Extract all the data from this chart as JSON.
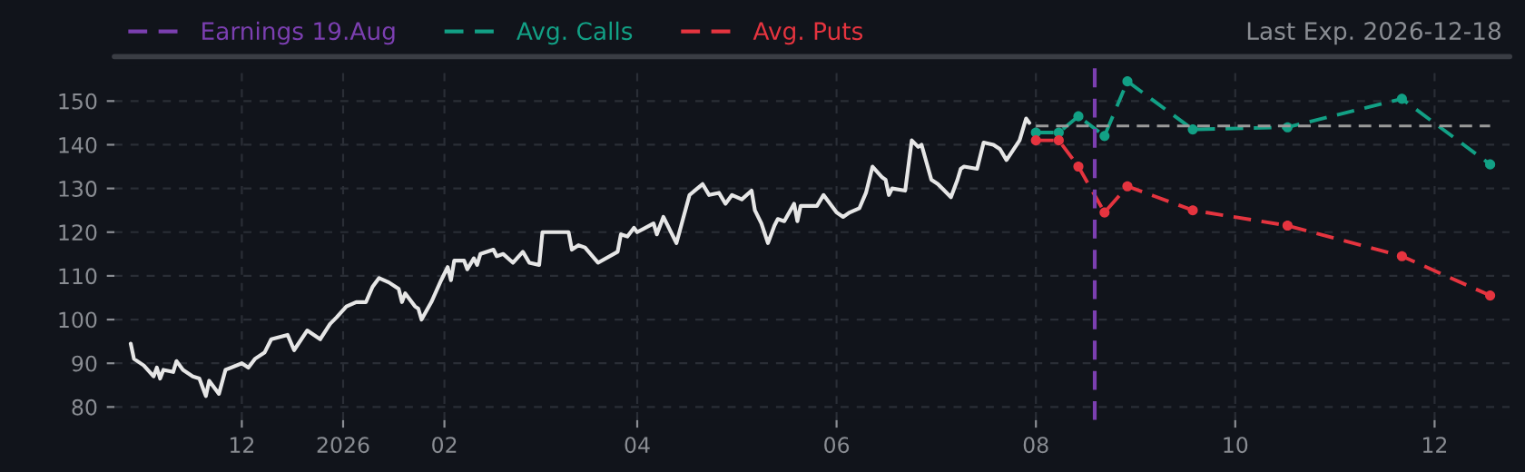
{
  "chart_data": {
    "type": "line",
    "annotations": [
      "Last Exp. 2026-12-18"
    ],
    "series": [
      {
        "color": "#e6e6e6",
        "line_style": "solid",
        "marker": "none",
        "x": [
          "2025-10-28",
          "2025-10-29",
          "2025-11-01",
          "2025-11-04",
          "2025-11-05",
          "2025-11-06",
          "2025-11-07",
          "2025-11-10",
          "2025-11-11",
          "2025-11-13",
          "2025-11-16",
          "2025-11-18",
          "2025-11-20",
          "2025-11-21",
          "2025-11-24",
          "2025-11-26",
          "2025-12-01",
          "2025-12-03",
          "2025-12-05",
          "2025-12-08",
          "2025-12-10",
          "2025-12-15",
          "2025-12-17",
          "2025-12-21",
          "2025-12-25",
          "2025-12-28",
          "2025-12-30",
          "2026-01-02",
          "2026-01-05",
          "2026-01-08",
          "2026-01-10",
          "2026-01-12",
          "2026-01-15",
          "2026-01-18",
          "2026-01-19",
          "2026-01-20",
          "2026-01-23",
          "2026-01-24",
          "2026-01-25",
          "2026-01-28",
          "2026-01-31",
          "2026-02-02",
          "2026-02-03",
          "2026-02-04",
          "2026-02-07",
          "2026-02-08",
          "2026-02-10",
          "2026-02-11",
          "2026-02-12",
          "2026-02-16",
          "2026-02-17",
          "2026-02-19",
          "2026-02-22",
          "2026-02-25",
          "2026-02-27",
          "2026-03-02",
          "2026-03-03",
          "2026-03-11",
          "2026-03-12",
          "2026-03-14",
          "2026-03-16",
          "2026-03-20",
          "2026-03-26",
          "2026-03-27",
          "2026-03-29",
          "2026-03-31",
          "2026-04-01",
          "2026-04-06",
          "2026-04-07",
          "2026-04-09",
          "2026-04-13",
          "2026-04-15",
          "2026-04-17",
          "2026-04-21",
          "2026-04-23",
          "2026-04-26",
          "2026-04-28",
          "2026-04-30",
          "2026-05-03",
          "2026-05-06",
          "2026-05-07",
          "2026-05-09",
          "2026-05-11",
          "2026-05-13",
          "2026-05-14",
          "2026-05-16",
          "2026-05-19",
          "2026-05-20",
          "2026-05-21",
          "2026-05-26",
          "2026-05-28",
          "2026-06-01",
          "2026-06-03",
          "2026-06-05",
          "2026-06-08",
          "2026-06-10",
          "2026-06-12",
          "2026-06-15",
          "2026-06-16",
          "2026-06-17",
          "2026-06-18",
          "2026-06-22",
          "2026-06-24",
          "2026-06-26",
          "2026-06-27",
          "2026-06-30",
          "2026-07-02",
          "2026-07-06",
          "2026-07-08",
          "2026-07-09",
          "2026-07-10",
          "2026-07-14",
          "2026-07-16",
          "2026-07-19",
          "2026-07-21",
          "2026-07-23",
          "2026-07-27",
          "2026-07-29",
          "2026-07-30"
        ],
        "values": [
          94.5,
          91,
          89.5,
          87,
          89,
          86.5,
          88.5,
          88,
          90.5,
          88.5,
          87,
          86.5,
          82.5,
          86,
          83,
          88.5,
          90,
          89,
          91,
          92.5,
          95.5,
          96.5,
          93,
          97.5,
          95.5,
          99,
          100.5,
          103,
          104,
          104,
          107.5,
          109.5,
          108.5,
          107,
          104,
          106,
          103,
          102.5,
          100,
          104,
          109,
          112,
          109,
          113.5,
          113.5,
          111.5,
          114,
          112.5,
          115,
          116,
          114.5,
          115,
          113,
          115.5,
          113,
          112.5,
          120,
          120,
          116,
          117,
          116.5,
          113,
          115.5,
          119.5,
          119,
          121,
          120,
          122,
          119.5,
          123.5,
          117.5,
          123,
          128.5,
          131,
          128.5,
          129,
          126.5,
          128.5,
          127.5,
          129.5,
          125,
          122,
          117.5,
          121.5,
          123,
          122.5,
          126.5,
          122.5,
          126,
          126,
          128.5,
          124.5,
          123.5,
          124.5,
          125.5,
          129,
          135,
          132.5,
          132,
          128.5,
          130,
          129.5,
          141,
          139.5,
          140,
          132,
          131,
          128,
          132,
          134.5,
          135,
          134.5,
          140.5,
          140,
          139,
          136.5,
          141,
          146,
          145
        ]
      },
      {
        "name": "Avg. Calls",
        "color": "#12a085",
        "line_style": "dashed",
        "marker": "circle",
        "x": [
          "2026-08-01",
          "2026-08-08",
          "2026-08-14",
          "2026-08-22",
          "2026-08-29",
          "2026-09-18",
          "2026-10-17",
          "2026-11-21",
          "2026-12-18"
        ],
        "values": [
          142.8,
          142.8,
          146.5,
          142,
          154.5,
          143.5,
          144,
          150.5,
          135.5
        ]
      },
      {
        "name": "Avg. Puts",
        "color": "#e5343f",
        "line_style": "dashed",
        "marker": "circle",
        "x": [
          "2026-08-01",
          "2026-08-08",
          "2026-08-14",
          "2026-08-22",
          "2026-08-29",
          "2026-09-18",
          "2026-10-17",
          "2026-11-21",
          "2026-12-18"
        ],
        "values": [
          141,
          141,
          135,
          124.5,
          130.5,
          125,
          121.5,
          114.5,
          105.5
        ]
      }
    ],
    "ref_lines": [
      {
        "axis": "x",
        "value": "2026-08-19",
        "label": "Earnings 19.Aug",
        "color": "#7b3fb0",
        "line_style": "dashed"
      },
      {
        "axis": "y",
        "value": 144.3,
        "color": "#9a9a9a",
        "line_style": "dashed"
      }
    ],
    "xlim": [
      "2025-10-23",
      "2026-12-24"
    ],
    "xticks": [
      {
        "value": "2025-12-01",
        "label": "12"
      },
      {
        "value": "2026-01-01",
        "label": "2026"
      },
      {
        "value": "2026-02-01",
        "label": "02"
      },
      {
        "value": "2026-04-01",
        "label": "04"
      },
      {
        "value": "2026-06-01",
        "label": "06"
      },
      {
        "value": "2026-08-01",
        "label": "08"
      },
      {
        "value": "2026-10-01",
        "label": "10"
      },
      {
        "value": "2026-12-01",
        "label": "12"
      }
    ],
    "ylim": [
      77,
      158
    ],
    "yticks": [
      80,
      90,
      100,
      110,
      120,
      130,
      140,
      150
    ],
    "grid": true,
    "legend": "top"
  }
}
